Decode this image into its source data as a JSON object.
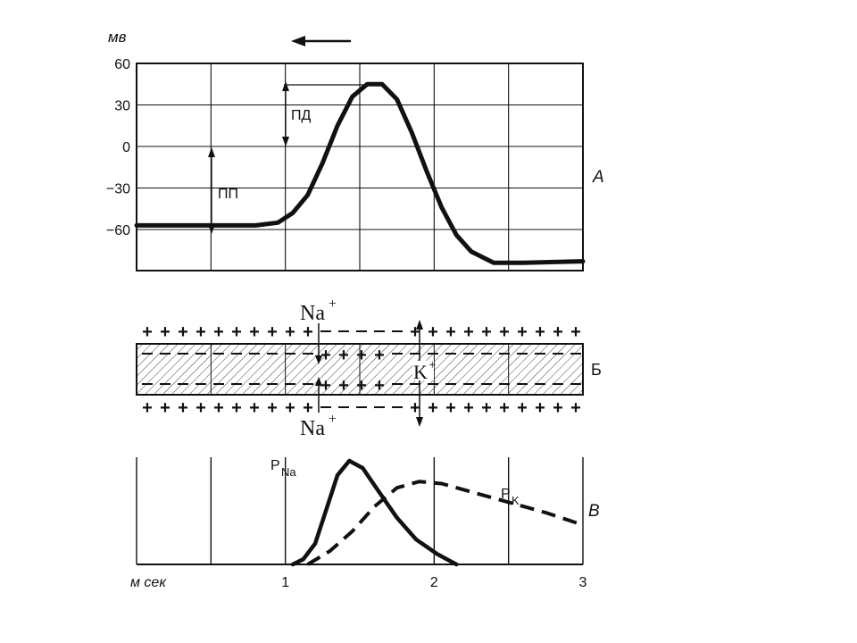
{
  "panel_a": {
    "unit_label": "мв",
    "y_ticks": [
      {
        "label": "60",
        "value": 60
      },
      {
        "label": "30",
        "value": 30
      },
      {
        "label": "0",
        "value": 0
      },
      {
        "label": "−30",
        "value": -30
      },
      {
        "label": "−60",
        "value": -60
      }
    ],
    "label_pd": "ПД",
    "label_pp": "ПП",
    "panel_letter": "А",
    "potential_curve_mv": [
      [
        0.0,
        -57
      ],
      [
        0.4,
        -57
      ],
      [
        0.8,
        -57
      ],
      [
        0.95,
        -55
      ],
      [
        1.05,
        -48
      ],
      [
        1.15,
        -35
      ],
      [
        1.25,
        -12
      ],
      [
        1.35,
        15
      ],
      [
        1.45,
        36
      ],
      [
        1.55,
        45
      ],
      [
        1.65,
        45
      ],
      [
        1.75,
        34
      ],
      [
        1.85,
        10
      ],
      [
        1.95,
        -18
      ],
      [
        2.05,
        -44
      ],
      [
        2.15,
        -64
      ],
      [
        2.25,
        -76
      ],
      [
        2.4,
        -84
      ],
      [
        2.6,
        -84
      ],
      [
        3.0,
        -83
      ]
    ]
  },
  "panel_b": {
    "na_top": "Na",
    "na_top_sup": "+",
    "na_bottom": "Na",
    "na_bottom_sup": "+",
    "k_label": "K",
    "k_sup": "+",
    "panel_letter": "Б"
  },
  "panel_c": {
    "pna_label": "P",
    "pna_sub": "Na",
    "pk_label": "P",
    "pk_sub": "K",
    "panel_letter": "В",
    "x_unit": "м сек",
    "x_ticks": [
      {
        "label": "1",
        "value": 1
      },
      {
        "label": "2",
        "value": 2
      },
      {
        "label": "3",
        "value": 3
      }
    ],
    "pna_curve": [
      [
        1.05,
        0.0
      ],
      [
        1.12,
        0.05
      ],
      [
        1.2,
        0.2
      ],
      [
        1.28,
        0.55
      ],
      [
        1.35,
        0.86
      ],
      [
        1.43,
        1.0
      ],
      [
        1.52,
        0.93
      ],
      [
        1.62,
        0.72
      ],
      [
        1.75,
        0.45
      ],
      [
        1.88,
        0.24
      ],
      [
        2.02,
        0.1
      ],
      [
        2.15,
        0.0
      ]
    ],
    "pk_curve": [
      [
        1.15,
        0.0
      ],
      [
        1.3,
        0.13
      ],
      [
        1.45,
        0.32
      ],
      [
        1.6,
        0.56
      ],
      [
        1.75,
        0.74
      ],
      [
        1.9,
        0.8
      ],
      [
        2.05,
        0.78
      ],
      [
        2.25,
        0.7
      ],
      [
        2.5,
        0.6
      ],
      [
        2.75,
        0.5
      ],
      [
        3.0,
        0.38
      ]
    ]
  }
}
